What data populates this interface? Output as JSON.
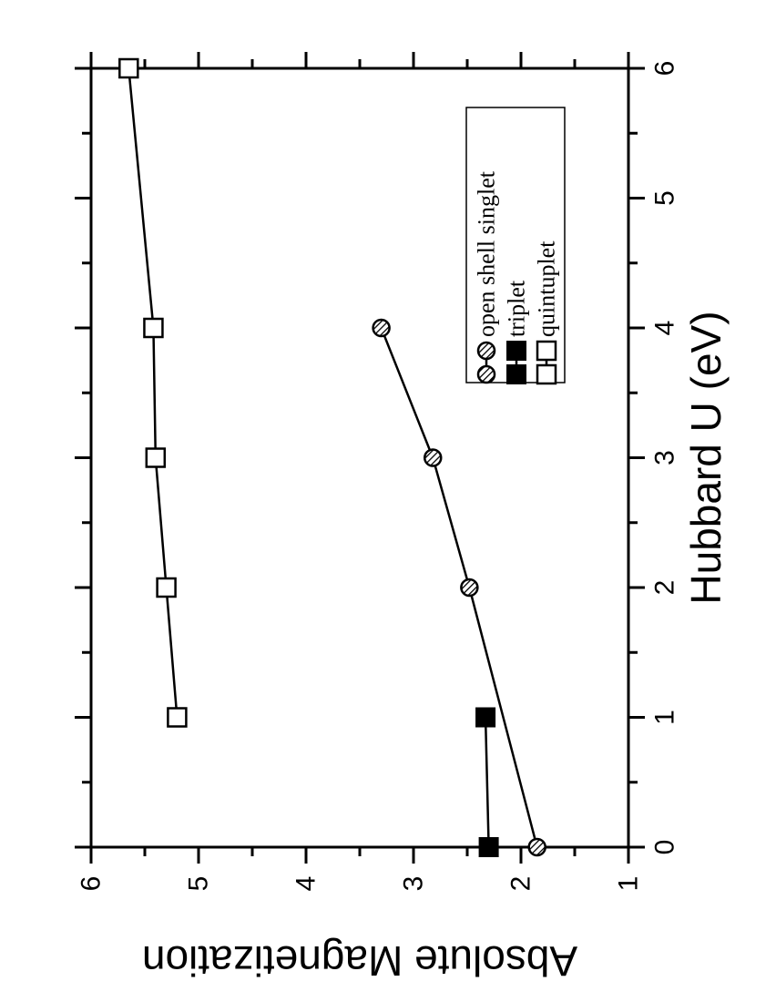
{
  "chart_data": {
    "type": "line",
    "orientation": "rotated 90° clockwise",
    "xlabel": "Hubbard U (eV)",
    "ylabel": "Absolute Magnetization",
    "xlim": [
      0,
      6
    ],
    "ylim": [
      1,
      6
    ],
    "x_ticks": [
      "0",
      "1",
      "2",
      "3",
      "4",
      "5",
      "6"
    ],
    "y_ticks": [
      "1",
      "2",
      "3",
      "4",
      "5",
      "6"
    ],
    "legend_position": "top-right",
    "series": [
      {
        "name": "open shell singlet",
        "marker": "hatched-circle",
        "x": [
          0,
          2,
          3,
          4
        ],
        "y": [
          1.85,
          2.48,
          2.82,
          3.3
        ]
      },
      {
        "name": "triplet",
        "marker": "filled-square",
        "x": [
          0,
          1
        ],
        "y": [
          2.3,
          2.33
        ]
      },
      {
        "name": "quintuplet",
        "marker": "open-square",
        "x": [
          1,
          2,
          3,
          4,
          6
        ],
        "y": [
          5.2,
          5.3,
          5.4,
          5.42,
          5.65
        ]
      }
    ]
  }
}
